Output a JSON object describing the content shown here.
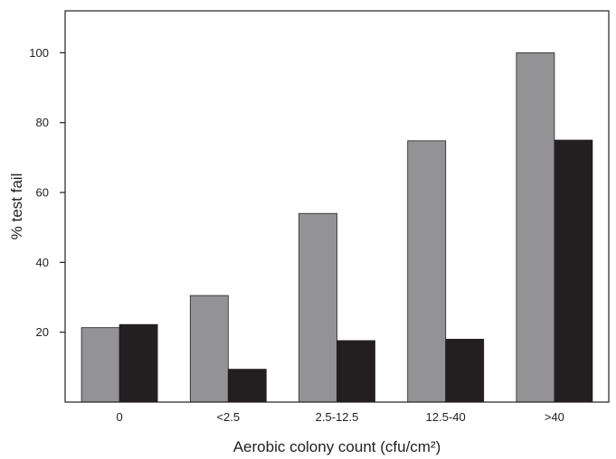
{
  "chart_data": {
    "type": "bar",
    "title": "",
    "xlabel": "Aerobic colony count (cfu/cm²)",
    "ylabel": "% test fail",
    "categories": [
      "0",
      "<2.5",
      "2.5-12.5",
      "12.5-40",
      ">40"
    ],
    "series": [
      {
        "values": [
          21.3,
          30.5,
          54,
          74.8,
          100
        ],
        "color": "#939396"
      },
      {
        "values": [
          22.2,
          9.4,
          17.6,
          18,
          75
        ],
        "color": "#231f20"
      }
    ],
    "yticks": [
      20,
      40,
      60,
      80,
      100
    ],
    "ylim": [
      0,
      112
    ],
    "grid": false,
    "legend": "none"
  }
}
